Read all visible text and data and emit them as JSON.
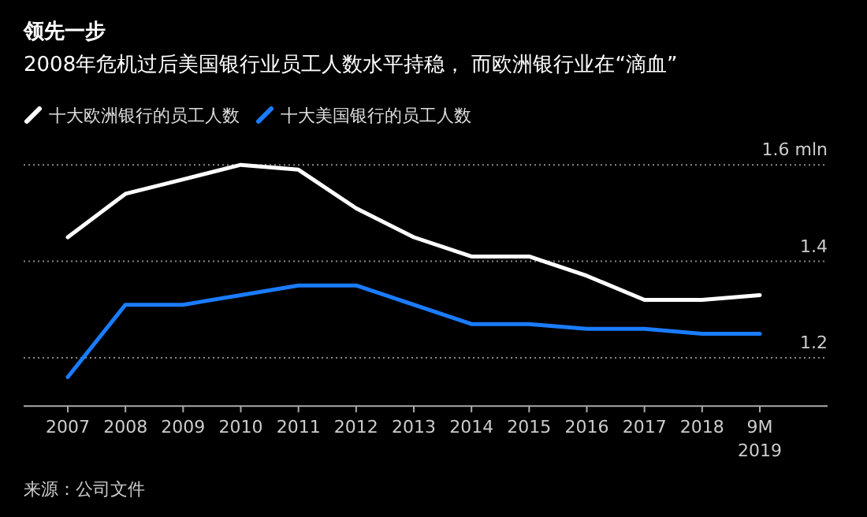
{
  "chart_data": {
    "type": "line",
    "title": "领先一步",
    "subtitle": "2008年危机过后美国银行业员工人数水平持稳， 而欧洲银行业在“滴血”",
    "categories": [
      "2007",
      "2008",
      "2009",
      "2010",
      "2011",
      "2012",
      "2013",
      "2014",
      "2015",
      "2016",
      "2017",
      "2018",
      "9M\n2019"
    ],
    "series": [
      {
        "name": "十大欧洲银行的员工人数",
        "color": "#ffffff",
        "values": [
          1.45,
          1.54,
          1.57,
          1.6,
          1.59,
          1.51,
          1.45,
          1.41,
          1.41,
          1.37,
          1.32,
          1.32,
          1.33
        ]
      },
      {
        "name": "十大美国银行的员工人数",
        "color": "#1a7cff",
        "values": [
          1.16,
          1.31,
          1.31,
          1.33,
          1.35,
          1.35,
          1.31,
          1.27,
          1.27,
          1.26,
          1.26,
          1.25,
          1.25
        ]
      }
    ],
    "ylim": [
      1.1,
      1.6
    ],
    "yticks": [
      1.2,
      1.4,
      {
        "value": 1.6,
        "label": "1.6 mln"
      }
    ],
    "grid": "y",
    "legend": "top left",
    "annotations": [
      "来源：公司文件"
    ]
  }
}
